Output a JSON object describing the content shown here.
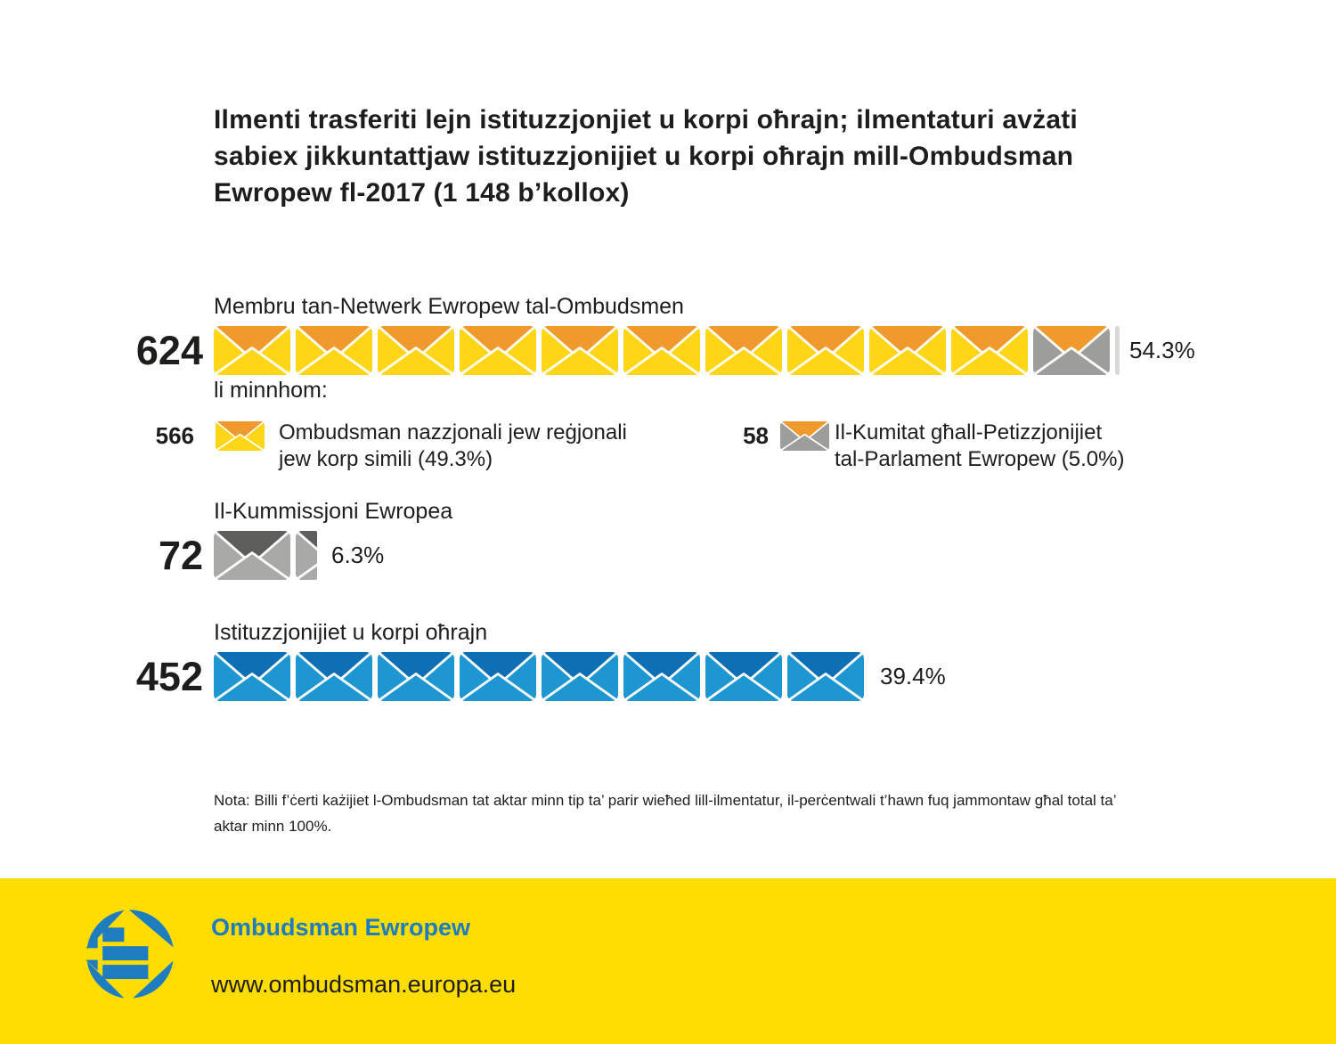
{
  "title": {
    "full": "Ilmenti trasferiti lejn istituzzjonjiet u korpi oħrajn; ilmentaturi avżati sabiex jikkuntattjaw istituzzjonijiet u korpi oħrajn mill-Ombudsman Ewropew fl-2017 (1 148 b’kollox)",
    "lines": [
      "Ilmenti trasferiti lejn istituzzjonjiet u korpi oħrajn; ilmentaturi avżati",
      "sabiex jikkuntattjaw istituzzjonijiet u korpi oħrajn mill-Ombudsman",
      "Ewropew fl-2017 (1 148 b’kollox)"
    ]
  },
  "chart_data": {
    "type": "pictogram-bar",
    "title": "Ilmenti trasferiti lejn istituzzjonjiet u korpi oħrajn; ilmentaturi avżati sabiex jikkuntattjaw istituzzjonijiet u korpi oħrajn mill-Ombudsman Ewropew fl-2017 (1 148 b’kollox)",
    "total": 1148,
    "total_label": "1 148 b’kollox",
    "icon_unit": "envelope ≈ 57 complaints",
    "rows": [
      {
        "label": "Membru tan-Netwerk Ewropew tal-Ombudsmen",
        "value": 624,
        "percent": 54.3,
        "percent_label": "54.3%",
        "icons": "10 yellow envelopes + 1 grey envelope with orange flap"
      },
      {
        "label": "Il-Kummissjoni Ewropea",
        "value": 72,
        "percent": 6.3,
        "percent_label": "6.3%",
        "icons": "1 grey envelope + quarter envelope"
      },
      {
        "label": "Istituzzjonijiet u korpi oħrajn",
        "value": 452,
        "percent": 39.4,
        "percent_label": "39.4%",
        "icons": "8 blue envelopes"
      }
    ],
    "breakdown_of_row1": {
      "intro": "li minnhom:",
      "items": [
        {
          "value": 566,
          "percent": 49.3,
          "label": "Ombudsman nazzjonali jew reġjonali jew korp simili (49.3%)"
        },
        {
          "value": 58,
          "percent": 5.0,
          "label": "Il-Kumitat għall-Petizzjonijiet tal-Parlament Ewropew (5.0%)"
        }
      ]
    },
    "note": "Nota: Billi f’ċerti każijiet l-Ombudsman tat aktar minn tip ta’ parir wieħed lill-ilmentatur, il-perċentwali t’hawn fuq jammontaw għal total ta’ aktar minn 100%.",
    "legend_position": "below first row",
    "grid": false
  },
  "rows": {
    "r1": {
      "number": "624",
      "label": "Membru tan-Netwerk Ewropew tal-Ombudsmen",
      "percent": "54.3%"
    },
    "r2": {
      "number": "72",
      "label": "Il-Kummissjoni Ewropea",
      "percent": "6.3%"
    },
    "r3": {
      "number": "452",
      "label": "Istituzzjonijiet u korpi oħrajn",
      "percent": "39.4%"
    }
  },
  "breakdown": {
    "intro": "li minnhom:",
    "left": {
      "number": "566",
      "lines": [
        "Ombudsman nazzjonali jew reġjonali",
        "jew korp simili (49.3%)"
      ]
    },
    "right": {
      "number": "58",
      "lines": [
        "Il-Kumitat għall-Petizzjonijiet",
        "tal-Parlament Ewropew (5.0%)"
      ]
    }
  },
  "note": {
    "lines": [
      "Nota: Billi f’ċerti każijiet l-Ombudsman tat aktar minn tip ta’ parir wieħed lill-ilmentatur, il-perċentwali t’hawn fuq jammontaw għal total ta’",
      "aktar minn 100%."
    ]
  },
  "footer": {
    "brand": "Ombudsman Ewropew",
    "url": "www.ombudsman.europa.eu"
  },
  "colors": {
    "ink": "#1D1D1B",
    "yellow": "#FFD617",
    "orange": "#F0992C",
    "gray": "#9D9D9C",
    "lightgray": "#A9A9A8",
    "darkgray": "#5E5E5D",
    "blue": "#1E96D2",
    "darkblue": "#0F6FB4",
    "sliver": "#D8D8D8",
    "footer_yellow": "#FFDD00",
    "brand_blue": "#1E7DBF"
  },
  "bars": {
    "row1": {
      "groups": [
        {
          "count": 10,
          "body": "yellow",
          "flap": "orange"
        },
        {
          "count": 1,
          "body": "gray",
          "flap": "orange"
        }
      ],
      "sliver": true
    },
    "row2": {
      "groups": [
        {
          "count": 1,
          "body": "lightgray",
          "flap": "darkgray"
        }
      ],
      "partial": {
        "body": "lightgray",
        "flap": "darkgray",
        "width": 24
      }
    },
    "row3": {
      "groups": [
        {
          "count": 8,
          "body": "blue",
          "flap": "darkblue"
        }
      ]
    },
    "legend_left": {
      "body": "yellow",
      "flap": "orange"
    },
    "legend_right": {
      "body": "gray",
      "flap": "orange"
    }
  }
}
